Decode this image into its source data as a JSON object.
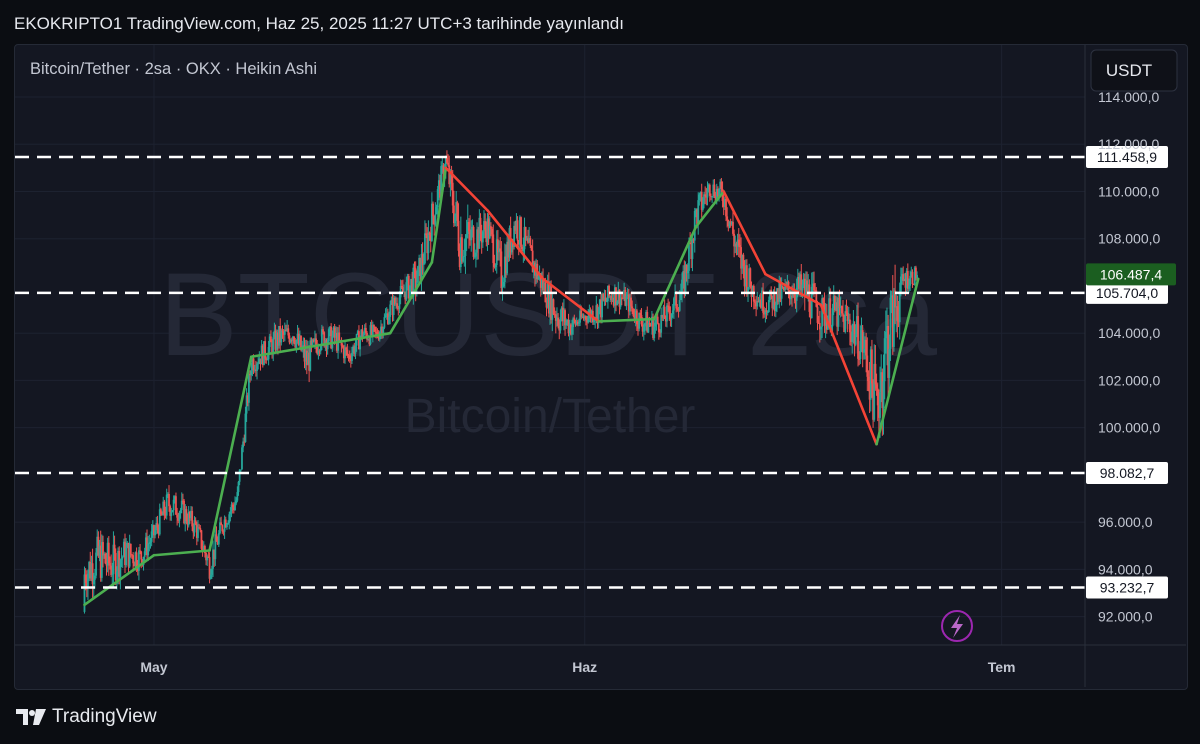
{
  "publication": {
    "line": "EKOKRIPTO1 TradingView.com, Haz 25, 2025 11:27 UTC+3 tarihinde yayınlandı"
  },
  "branding": {
    "logo_text": "TradingView",
    "icon": "tradingview-logo-icon"
  },
  "colors": {
    "background": "#141722",
    "grid": "#1d2230",
    "candle_up": "#26a69a",
    "candle_down": "#ef5350",
    "ma_up": "#4caf50",
    "ma_down": "#f44336",
    "level_line": "#ffffff",
    "last_price_badge": "#1b5e20",
    "accent_bolt": "#9c27b0"
  },
  "chart_data": {
    "type": "candlestick",
    "candle_style": "heikin-ashi",
    "symbol_line": "Bitcoin/Tether · 2sa · OKX · Heikin Ashi",
    "watermark": {
      "symbol": "BTCUSDT 2sa",
      "name": "Bitcoin/Tether"
    },
    "currency_button": "USDT",
    "ylim": [
      90800,
      116200
    ],
    "y_ticks": [
      "114.000,0",
      "112.000,0",
      "110.000,0",
      "108.000,0",
      "104.000,0",
      "102.000,0",
      "100.000,0",
      "96.000,0",
      "94.000,0",
      "92.000,0"
    ],
    "y_tick_values": [
      114000,
      112000,
      110000,
      108000,
      104000,
      102000,
      100000,
      96000,
      94000,
      92000
    ],
    "x_ticks": [
      "May",
      "Haz",
      "Tem"
    ],
    "x_tick_dates": [
      "2025-05-01",
      "2025-06-01",
      "2025-07-01"
    ],
    "x_range": [
      "2025-04-21",
      "2025-07-07"
    ],
    "price_series": {
      "dates": [
        "2025-04-26",
        "2025-04-27",
        "2025-04-28",
        "2025-04-29",
        "2025-04-30",
        "2025-05-01",
        "2025-05-02",
        "2025-05-03",
        "2025-05-04",
        "2025-05-05",
        "2025-05-06",
        "2025-05-07",
        "2025-05-08",
        "2025-05-09",
        "2025-05-10",
        "2025-05-11",
        "2025-05-12",
        "2025-05-13",
        "2025-05-14",
        "2025-05-15",
        "2025-05-16",
        "2025-05-17",
        "2025-05-18",
        "2025-05-19",
        "2025-05-20",
        "2025-05-21",
        "2025-05-22",
        "2025-05-23",
        "2025-05-24",
        "2025-05-25",
        "2025-05-26",
        "2025-05-27",
        "2025-05-28",
        "2025-05-29",
        "2025-05-30",
        "2025-05-31",
        "2025-06-01",
        "2025-06-02",
        "2025-06-03",
        "2025-06-04",
        "2025-06-05",
        "2025-06-06",
        "2025-06-07",
        "2025-06-08",
        "2025-06-09",
        "2025-06-10",
        "2025-06-11",
        "2025-06-12",
        "2025-06-13",
        "2025-06-14",
        "2025-06-15",
        "2025-06-16",
        "2025-06-17",
        "2025-06-18",
        "2025-06-19",
        "2025-06-20",
        "2025-06-21",
        "2025-06-22",
        "2025-06-23",
        "2025-06-24",
        "2025-06-25"
      ],
      "close": [
        93800,
        94500,
        94200,
        94700,
        94500,
        95500,
        96800,
        96500,
        95800,
        94200,
        96000,
        97000,
        102800,
        103200,
        103800,
        104000,
        102800,
        103800,
        103800,
        103000,
        104000,
        103900,
        105000,
        105800,
        106300,
        108800,
        111300,
        108000,
        108000,
        108500,
        106500,
        108700,
        107300,
        106000,
        104800,
        104300,
        104700,
        105000,
        105700,
        105400,
        104500,
        104300,
        104800,
        105700,
        109000,
        110200,
        109800,
        107400,
        105900,
        105200,
        105600,
        105900,
        105700,
        104800,
        104900,
        104400,
        103500,
        101000,
        104500,
        106300,
        106500
      ],
      "high": [
        94600,
        95600,
        95300,
        95300,
        95000,
        96000,
        97500,
        97000,
        96300,
        95000,
        96500,
        98000,
        103500,
        104000,
        104800,
        104500,
        103600,
        104500,
        104500,
        103500,
        104500,
        104500,
        105800,
        106500,
        108000,
        110500,
        112000,
        110500,
        109800,
        109500,
        108500,
        110000,
        108800,
        107000,
        105900,
        105000,
        105200,
        106000,
        106500,
        106000,
        105500,
        105200,
        105500,
        106500,
        110500,
        110700,
        110700,
        109000,
        107000,
        106000,
        106600,
        107000,
        107000,
        106000,
        105900,
        105500,
        104500,
        102500,
        105500,
        106700,
        107000
      ],
      "low": [
        92200,
        92800,
        92800,
        93400,
        93300,
        94700,
        95800,
        95500,
        95000,
        93300,
        95200,
        96600,
        101900,
        102600,
        103200,
        103200,
        101500,
        103200,
        103000,
        102300,
        103200,
        103300,
        104500,
        105200,
        105800,
        108100,
        110500,
        106800,
        107200,
        107800,
        105800,
        108000,
        106600,
        105300,
        103500,
        103600,
        104200,
        104300,
        105000,
        104800,
        104000,
        103600,
        104200,
        104600,
        108200,
        109500,
        109100,
        106500,
        105200,
        104600,
        105000,
        105200,
        104400,
        103800,
        103800,
        103100,
        101800,
        98200,
        99200,
        105200,
        106100
      ]
    },
    "ma_series": {
      "dates": [
        "2025-04-26",
        "2025-05-01",
        "2025-05-05",
        "2025-05-08",
        "2025-05-12",
        "2025-05-18",
        "2025-05-21",
        "2025-05-22",
        "2025-05-25",
        "2025-05-29",
        "2025-06-02",
        "2025-06-06",
        "2025-06-09",
        "2025-06-11",
        "2025-06-14",
        "2025-06-18",
        "2025-06-22",
        "2025-06-25"
      ],
      "values": [
        92500,
        94600,
        94800,
        103000,
        103400,
        104000,
        107000,
        111000,
        109200,
        106300,
        104500,
        104600,
        108500,
        110000,
        106500,
        105200,
        99300,
        106300
      ]
    },
    "horizontal_levels": [
      {
        "value": 111458.9,
        "label": "111.458,9"
      },
      {
        "value": 105704.0,
        "label": "105.704,0"
      },
      {
        "value": 98082.7,
        "label": "98.082,7"
      },
      {
        "value": 93232.7,
        "label": "93.232,7"
      }
    ],
    "last_price": {
      "value": 106487.4,
      "label": "106.487,4"
    },
    "bolt_icon": "lightning-bolt-icon",
    "grid": true
  }
}
